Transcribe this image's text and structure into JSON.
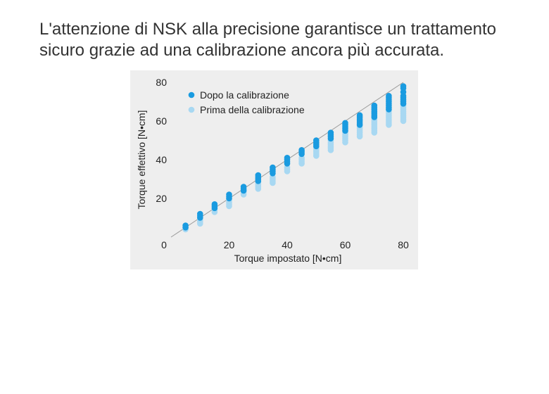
{
  "headline": {
    "line1": "L'attenzione di NSK alla precisione garantisce un trattamento",
    "line2": "sicuro grazie ad una calibrazione ancora più accurata."
  },
  "colors": {
    "after": "#1a9be0",
    "before": "#a8d8f2",
    "reference_line": "#9a9a9a",
    "axis": "#555555",
    "panel": "#eeeeee"
  },
  "chart_data": {
    "type": "scatter",
    "xlabel": "Torque impostato [N•cm]",
    "ylabel": "Torque effettivo [N•cm]",
    "xlim": [
      0,
      80
    ],
    "ylim": [
      0,
      80
    ],
    "x_ticks": [
      "0",
      "20",
      "40",
      "60",
      "80"
    ],
    "y_ticks": [
      "20",
      "40",
      "60",
      "80"
    ],
    "grid": false,
    "legend_position": "top-left",
    "reference_line": "y = x",
    "series": [
      {
        "name": "Dopo la calibrazione",
        "color": "#1a9be0",
        "points": [
          [
            5,
            5
          ],
          [
            5,
            6
          ],
          [
            10,
            10
          ],
          [
            10,
            11
          ],
          [
            10,
            12
          ],
          [
            15,
            15
          ],
          [
            15,
            16
          ],
          [
            15,
            17
          ],
          [
            20,
            20
          ],
          [
            20,
            21
          ],
          [
            20,
            22
          ],
          [
            25,
            24
          ],
          [
            25,
            25
          ],
          [
            25,
            26
          ],
          [
            30,
            29
          ],
          [
            30,
            30
          ],
          [
            30,
            31
          ],
          [
            30,
            32
          ],
          [
            35,
            33
          ],
          [
            35,
            34
          ],
          [
            35,
            35
          ],
          [
            35,
            36
          ],
          [
            40,
            38
          ],
          [
            40,
            39
          ],
          [
            40,
            40
          ],
          [
            40,
            41
          ],
          [
            45,
            43
          ],
          [
            45,
            44
          ],
          [
            45,
            45
          ],
          [
            50,
            47
          ],
          [
            50,
            48
          ],
          [
            50,
            49
          ],
          [
            50,
            50
          ],
          [
            55,
            51
          ],
          [
            55,
            52
          ],
          [
            55,
            53
          ],
          [
            55,
            54
          ],
          [
            60,
            55
          ],
          [
            60,
            56
          ],
          [
            60,
            57
          ],
          [
            60,
            58
          ],
          [
            60,
            59
          ],
          [
            65,
            58
          ],
          [
            65,
            59
          ],
          [
            65,
            60
          ],
          [
            65,
            61
          ],
          [
            65,
            62
          ],
          [
            65,
            63
          ],
          [
            70,
            62
          ],
          [
            70,
            63
          ],
          [
            70,
            64
          ],
          [
            70,
            65
          ],
          [
            70,
            66
          ],
          [
            70,
            67
          ],
          [
            70,
            68
          ],
          [
            75,
            66
          ],
          [
            75,
            67
          ],
          [
            75,
            68
          ],
          [
            75,
            69
          ],
          [
            75,
            70
          ],
          [
            75,
            71
          ],
          [
            75,
            72
          ],
          [
            75,
            73
          ],
          [
            80,
            69
          ],
          [
            80,
            70
          ],
          [
            80,
            71
          ],
          [
            80,
            72
          ],
          [
            80,
            73
          ],
          [
            80,
            75
          ],
          [
            80,
            77
          ],
          [
            80,
            78
          ]
        ]
      },
      {
        "name": "Prima della calibrazione",
        "color": "#a8d8f2",
        "points": [
          [
            5,
            4
          ],
          [
            5,
            5
          ],
          [
            10,
            7
          ],
          [
            10,
            8
          ],
          [
            10,
            9
          ],
          [
            15,
            13
          ],
          [
            15,
            14
          ],
          [
            15,
            15
          ],
          [
            20,
            16
          ],
          [
            20,
            17
          ],
          [
            20,
            18
          ],
          [
            20,
            19
          ],
          [
            25,
            22
          ],
          [
            25,
            23
          ],
          [
            25,
            24
          ],
          [
            30,
            25
          ],
          [
            30,
            26
          ],
          [
            30,
            27
          ],
          [
            30,
            28
          ],
          [
            35,
            28
          ],
          [
            35,
            29
          ],
          [
            35,
            30
          ],
          [
            35,
            31
          ],
          [
            40,
            34
          ],
          [
            40,
            35
          ],
          [
            40,
            36
          ],
          [
            45,
            38
          ],
          [
            45,
            39
          ],
          [
            45,
            40
          ],
          [
            45,
            41
          ],
          [
            50,
            42
          ],
          [
            50,
            43
          ],
          [
            50,
            44
          ],
          [
            50,
            45
          ],
          [
            50,
            46
          ],
          [
            50,
            47
          ],
          [
            55,
            45
          ],
          [
            55,
            46
          ],
          [
            55,
            47
          ],
          [
            55,
            48
          ],
          [
            55,
            49
          ],
          [
            55,
            50
          ],
          [
            60,
            49
          ],
          [
            60,
            50
          ],
          [
            60,
            51
          ],
          [
            60,
            52
          ],
          [
            60,
            53
          ],
          [
            60,
            54
          ],
          [
            60,
            55
          ],
          [
            65,
            52
          ],
          [
            65,
            53
          ],
          [
            65,
            54
          ],
          [
            65,
            55
          ],
          [
            65,
            56
          ],
          [
            65,
            57
          ],
          [
            65,
            58
          ],
          [
            70,
            54
          ],
          [
            70,
            55
          ],
          [
            70,
            56
          ],
          [
            70,
            57
          ],
          [
            70,
            58
          ],
          [
            70,
            59
          ],
          [
            70,
            60
          ],
          [
            70,
            61
          ],
          [
            70,
            62
          ],
          [
            75,
            58
          ],
          [
            75,
            59
          ],
          [
            75,
            60
          ],
          [
            75,
            61
          ],
          [
            75,
            62
          ],
          [
            75,
            63
          ],
          [
            75,
            64
          ],
          [
            75,
            65
          ],
          [
            75,
            66
          ],
          [
            75,
            67
          ],
          [
            80,
            60
          ],
          [
            80,
            61
          ],
          [
            80,
            62
          ],
          [
            80,
            63
          ],
          [
            80,
            64
          ],
          [
            80,
            65
          ],
          [
            80,
            66
          ],
          [
            80,
            67
          ],
          [
            80,
            68
          ],
          [
            80,
            69
          ]
        ]
      }
    ]
  }
}
